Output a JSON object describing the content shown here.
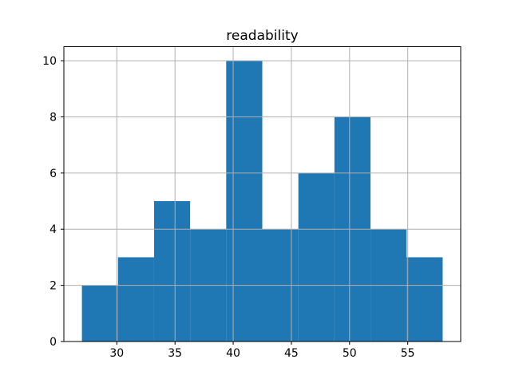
{
  "figure": {
    "background": "#ffffff"
  },
  "chart_data": {
    "type": "histogram",
    "title": "readability",
    "bin_edges": [
      27.0,
      30.1,
      33.2,
      36.3,
      39.4,
      42.5,
      45.6,
      48.7,
      51.8,
      54.9,
      58.0
    ],
    "counts": [
      2,
      3,
      5,
      4,
      10,
      4,
      6,
      8,
      4,
      3
    ],
    "xlabel": "",
    "ylabel": "",
    "xticks": [
      30,
      35,
      40,
      45,
      50,
      55
    ],
    "yticks": [
      0,
      2,
      4,
      6,
      8,
      10
    ],
    "xlim": [
      25.45,
      59.55
    ],
    "ylim": [
      0,
      10.5
    ],
    "grid": true,
    "grid_above_bars": true,
    "legend": null,
    "bar_color": "#1f77b4",
    "grid_color": "#b0b0b0",
    "axis_color": "#000000",
    "text_color": "#000000"
  }
}
